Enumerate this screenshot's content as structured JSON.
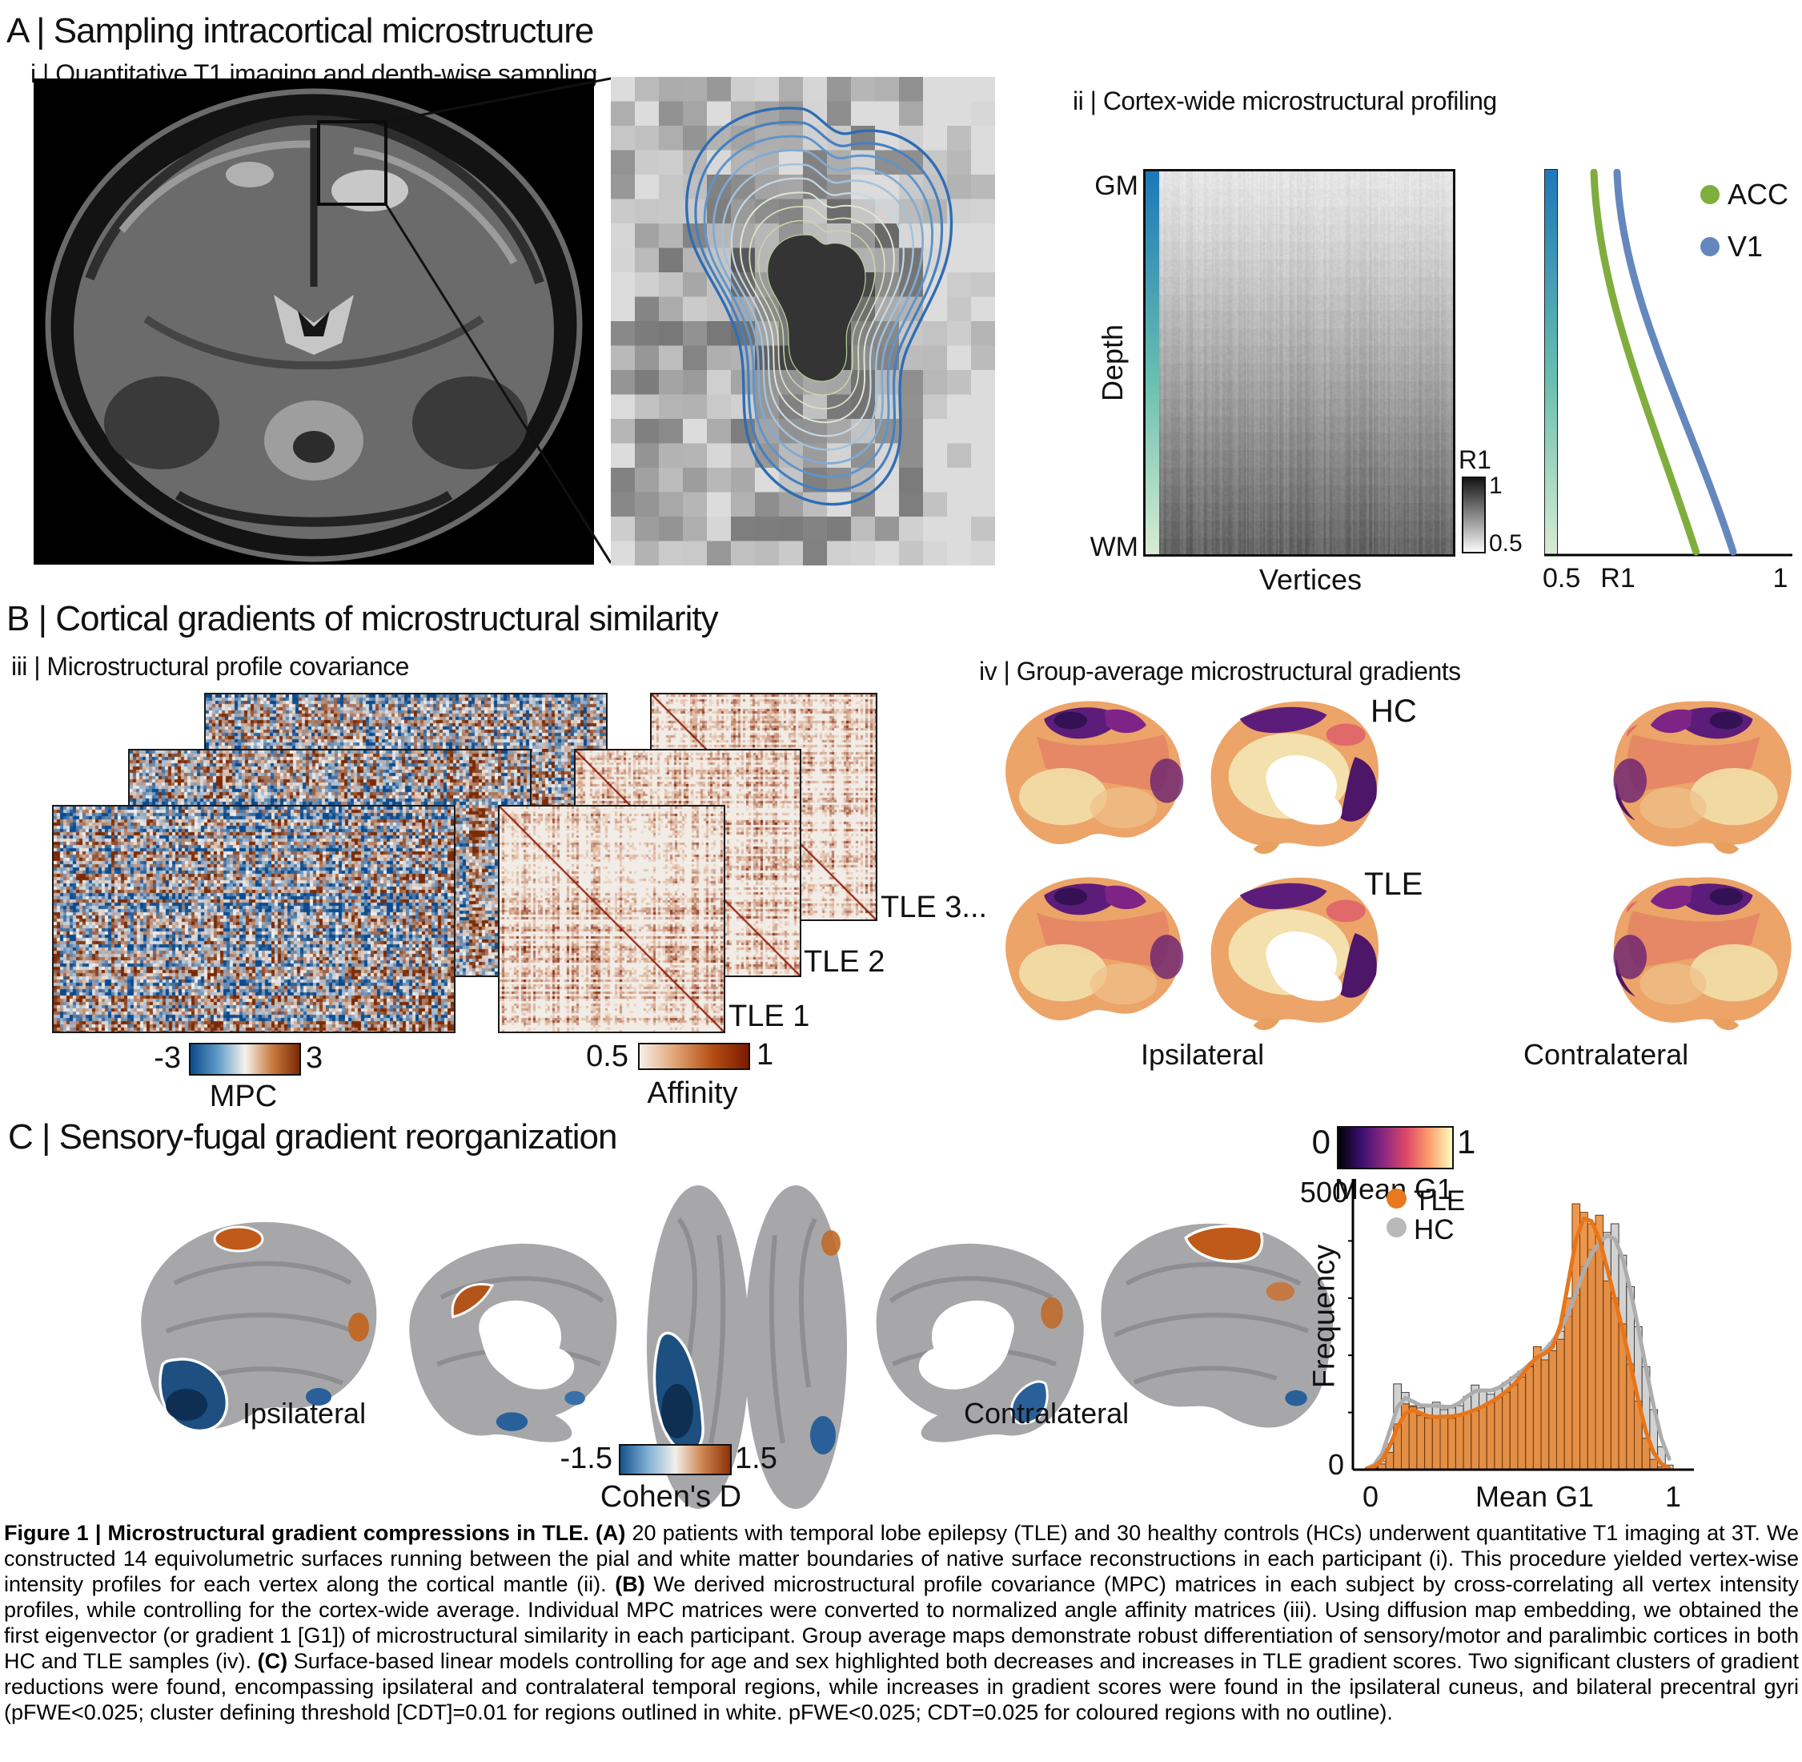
{
  "panelA": {
    "title": "A | Sampling intracortical microstructure",
    "i_title": "i | Quantitative T1 imaging and depth-wise sampling",
    "ii_title": "ii | Cortex-wide microstructural profiling",
    "profiling": {
      "gm": "GM",
      "wm": "WM",
      "depth": "Depth",
      "vertices": "Vertices",
      "r1": "R1",
      "r1_top": "1",
      "r1_bottom": "0.5",
      "x_tick_left": "0.5",
      "x_tick_mid": "R1",
      "x_tick_right": "1",
      "legend_acc": "ACC",
      "legend_v1": "V1"
    }
  },
  "panelB": {
    "title": "B | Cortical gradients of microstructural similarity",
    "iii_title": "iii | Microstructural profile covariance",
    "iv_title": "iv | Group-average microstructural gradients",
    "mpc": {
      "min": "-3",
      "max": "3",
      "label": "MPC"
    },
    "affinity": {
      "min": "0.5",
      "max": "1",
      "label": "Affinity",
      "tle1": "TLE 1",
      "tle2": "TLE 2",
      "tle3": "TLE 3..."
    },
    "gradients": {
      "hc": "HC",
      "tle": "TLE",
      "ipsi": "Ipsilateral",
      "contra": "Contralateral",
      "cbar_min": "0",
      "cbar_max": "1",
      "cbar_label": "Mean G1"
    }
  },
  "panelC": {
    "title": "C | Sensory-fugal gradient reorganization",
    "ipsi": "Ipsilateral",
    "contra": "Contralateral",
    "cohens": {
      "min": "-1.5",
      "max": "1.5",
      "label": "Cohen's D"
    },
    "hist": {
      "y_max": "500",
      "y_min": "0",
      "y_label": "Frequency",
      "x_min": "0",
      "x_label": "Mean G1",
      "x_max": "1",
      "legend_tle": "TLE",
      "legend_hc": "HC"
    }
  },
  "caption": {
    "segments": [
      {
        "text": "Figure 1 | Microstructural gradient compressions in TLE. (A) ",
        "bold": true
      },
      {
        "text": "20 patients with temporal lobe epilepsy (TLE) and 30 healthy controls (HCs) underwent quantitative T1 imaging at 3T. We constructed 14 equivolumetric surfaces running between the pial and white matter boundaries of native surface reconstructions in each participant (i). This procedure yielded vertex-wise intensity profiles for each vertex along the cortical mantle (ii). ",
        "bold": false
      },
      {
        "text": "(B) ",
        "bold": true
      },
      {
        "text": "We derived microstructural profile covariance (MPC) matrices in each subject by cross-correlating all vertex intensity profiles, while controlling for the cortex-wide average. Individual MPC matrices were converted to normalized angle affinity matrices (iii). Using diffusion map embedding, we obtained the first eigenvector (or gradient 1 [G1]) of microstructural similarity in each participant. Group average maps demonstrate robust differentiation of sensory/motor and paralimbic cortices in both HC and TLE samples (iv). ",
        "bold": false
      },
      {
        "text": "(C) ",
        "bold": true
      },
      {
        "text": "Surface-based linear models controlling for age and sex highlighted both decreases and increases in TLE gradient scores. Two significant clusters of gradient reductions were found, encompassing ipsilateral and contralateral temporal regions, while increases in gradient scores were found in the ipsilateral cuneus, and bilateral precentral gyri (pFWE<0.025; cluster defining threshold [CDT]=0.01 for regions outlined in white. pFWE<0.025; CDT=0.025 for coloured regions with no outline).",
        "bold": false
      }
    ]
  },
  "colors": {
    "depth_gradient": [
      "#1E78B8",
      "#69C0B0",
      "#D8ECD2"
    ],
    "r1_gray": [
      "#151515",
      "#FAFAFA"
    ],
    "mpc_cmap": [
      "#0B4A8C",
      "#5E9BC8",
      "#F5F2EE",
      "#C97B3F",
      "#7A2A04"
    ],
    "affinity_cmap": [
      "#F7EFE9",
      "#E0A272",
      "#B54E14",
      "#7C1A00"
    ],
    "magma": [
      "#000004",
      "#3B0F70",
      "#8C2981",
      "#DE4968",
      "#FE9F6D",
      "#FCFDBF"
    ],
    "cohens_cmap": [
      "#15538F",
      "#7FB0D4",
      "#F2EFEA",
      "#CE8450",
      "#8C3206"
    ],
    "tle_orange": "#E8791F",
    "hc_gray": "#B9B9B9",
    "acc_green": "#7FAE3E",
    "v1_blue": "#6488BD",
    "contours": [
      "#2E6DB4",
      "#4480C0",
      "#5E95CC",
      "#7FAAD6",
      "#A2C2DE",
      "#C6D8E2",
      "#DEE6D8",
      "#D9E2C2",
      "#C8D8AC",
      "#B4CC98"
    ]
  },
  "chart_data": [
    {
      "id": "g1_histogram",
      "type": "bar",
      "xlabel": "Mean G1",
      "ylabel": "Frequency",
      "x_range": [
        0,
        1
      ],
      "ylim": [
        0,
        500
      ],
      "n_bins": 40,
      "legend_position": "top-left",
      "series": [
        {
          "name": "TLE",
          "color": "#E8791F",
          "values": [
            0,
            3,
            10,
            30,
            80,
            115,
            110,
            95,
            90,
            92,
            95,
            90,
            95,
            100,
            103,
            110,
            118,
            126,
            135,
            148,
            162,
            180,
            215,
            192,
            208,
            228,
            300,
            465,
            450,
            430,
            445,
            330,
            300,
            255,
            185,
            120,
            55,
            18,
            5,
            1
          ]
        },
        {
          "name": "HC",
          "color": "#C9C9C9",
          "values": [
            0,
            4,
            15,
            45,
            150,
            135,
            112,
            108,
            112,
            118,
            105,
            108,
            112,
            128,
            148,
            138,
            132,
            142,
            152,
            162,
            172,
            182,
            198,
            208,
            222,
            242,
            268,
            305,
            355,
            385,
            395,
            415,
            430,
            375,
            320,
            250,
            180,
            105,
            40,
            8
          ]
        }
      ]
    },
    {
      "id": "depth_profiles",
      "type": "line",
      "xlabel": "R1",
      "x_range": [
        0.5,
        1
      ],
      "ylabel": "Depth",
      "y_axis": [
        "GM",
        "WM"
      ],
      "series": [
        {
          "name": "ACC",
          "color": "#7FAE3E",
          "r1_gm": 0.6,
          "r1_wm": 0.82
        },
        {
          "name": "V1",
          "color": "#6488BD",
          "r1_gm": 0.65,
          "r1_wm": 0.9
        }
      ]
    },
    {
      "id": "profile_heatmap",
      "type": "heatmap",
      "xlabel": "Vertices",
      "y_axis": [
        "GM",
        "WM"
      ],
      "value_label": "R1",
      "value_range": [
        0.5,
        1
      ]
    }
  ]
}
